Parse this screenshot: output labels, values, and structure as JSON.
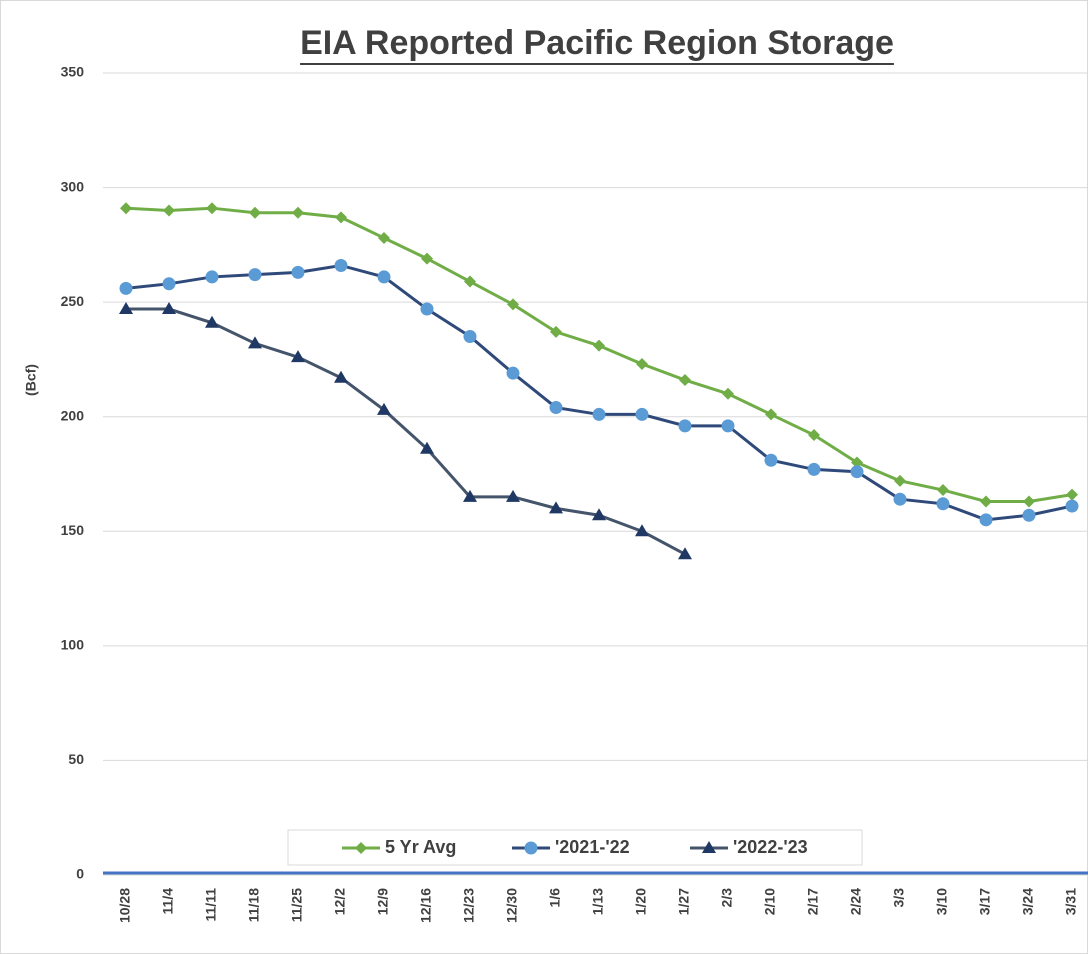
{
  "chart_data": {
    "type": "line",
    "title": "EIA Reported Pacific Region Storage",
    "y_label": "(Bcf)",
    "categories": [
      "10/28",
      "11/4",
      "11/11",
      "11/18",
      "11/25",
      "12/2",
      "12/9",
      "12/16",
      "12/23",
      "12/30",
      "1/6",
      "1/13",
      "1/20",
      "1/27",
      "2/3",
      "2/10",
      "2/17",
      "2/24",
      "3/3",
      "3/10",
      "3/17",
      "3/24",
      "3/31"
    ],
    "series": [
      {
        "name": "5 Yr Avg",
        "color": "#70ad47",
        "line_color": "#70ad47",
        "marker": "diamond",
        "values": [
          291,
          290,
          291,
          289,
          289,
          287,
          278,
          269,
          259,
          249,
          237,
          231,
          223,
          216,
          210,
          201,
          192,
          180,
          172,
          168,
          163,
          163,
          166
        ]
      },
      {
        "name": "'2021-'22",
        "color": "#5b9bd5",
        "line_color": "#2f4a7a",
        "marker": "circle",
        "values": [
          256,
          258,
          261,
          262,
          263,
          266,
          261,
          247,
          235,
          219,
          204,
          201,
          201,
          196,
          196,
          181,
          177,
          176,
          164,
          162,
          155,
          157,
          161
        ]
      },
      {
        "name": "'2022-'23",
        "color": "#1f3864",
        "line_color": "#44546a",
        "marker": "triangle",
        "values": [
          247,
          247,
          241,
          232,
          226,
          217,
          203,
          186,
          165,
          165,
          160,
          157,
          150,
          140,
          null,
          null,
          null,
          null,
          null,
          null,
          null,
          null,
          null
        ]
      }
    ],
    "ylim": [
      0,
      350
    ],
    "yticks": [
      0,
      50,
      100,
      150,
      200,
      250,
      300,
      350
    ],
    "grid": true,
    "legend": "bottom"
  }
}
